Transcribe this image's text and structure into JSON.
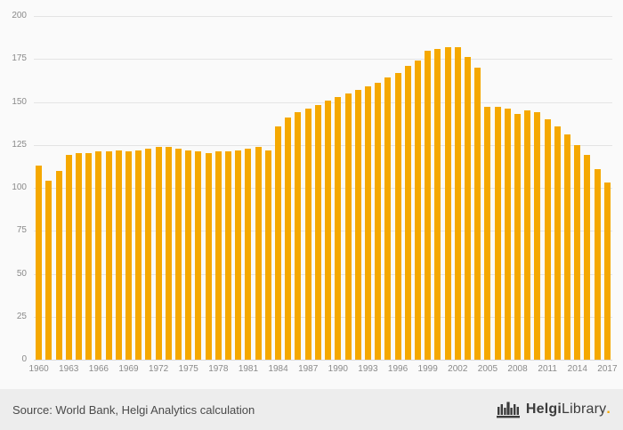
{
  "chart_data": {
    "type": "bar",
    "title": "",
    "xlabel": "",
    "ylabel": "",
    "grid": true,
    "legend": false,
    "ylim": [
      0,
      200
    ],
    "yticks": [
      0,
      25,
      50,
      75,
      100,
      125,
      150,
      175,
      200
    ],
    "xticks": [
      1960,
      1963,
      1966,
      1969,
      1972,
      1975,
      1978,
      1981,
      1984,
      1987,
      1990,
      1993,
      1996,
      1999,
      2002,
      2005,
      2008,
      2011,
      2014,
      2017
    ],
    "categories": [
      1960,
      1961,
      1962,
      1963,
      1964,
      1965,
      1966,
      1967,
      1968,
      1969,
      1970,
      1971,
      1972,
      1973,
      1974,
      1975,
      1976,
      1977,
      1978,
      1979,
      1980,
      1981,
      1982,
      1983,
      1984,
      1985,
      1986,
      1987,
      1988,
      1989,
      1990,
      1991,
      1992,
      1993,
      1994,
      1995,
      1996,
      1997,
      1998,
      1999,
      2000,
      2001,
      2002,
      2003,
      2004,
      2005,
      2006,
      2007,
      2008,
      2009,
      2010,
      2011,
      2012,
      2013,
      2014,
      2015,
      2016,
      2017
    ],
    "values": [
      113,
      104,
      110,
      119,
      120,
      120,
      121,
      121,
      122,
      121,
      122,
      123,
      124,
      124,
      123,
      122,
      121,
      120,
      121,
      121,
      122,
      123,
      124,
      122,
      136,
      141,
      144,
      146,
      148,
      151,
      153,
      155,
      157,
      159,
      161,
      164,
      167,
      171,
      174,
      180,
      181,
      182,
      182,
      176,
      170,
      147,
      147,
      146,
      143,
      145,
      144,
      140,
      136,
      131,
      125,
      119,
      111,
      103
    ]
  },
  "footer": {
    "source": "Source: World Bank, Helgi Analytics calculation",
    "brand": {
      "name_bold": "Helgi",
      "name_regular": "Library",
      "suffix": "."
    }
  },
  "colors": {
    "bar": "#F5A800",
    "chart_bg": "#FAFAFA",
    "footer_bg": "#EDEDED",
    "grid": "#E4E4E4",
    "tick_text": "#8A8A8A",
    "source_text": "#4A4A4A",
    "brand_text": "#3C3C3C",
    "accent": "#F5A800"
  }
}
